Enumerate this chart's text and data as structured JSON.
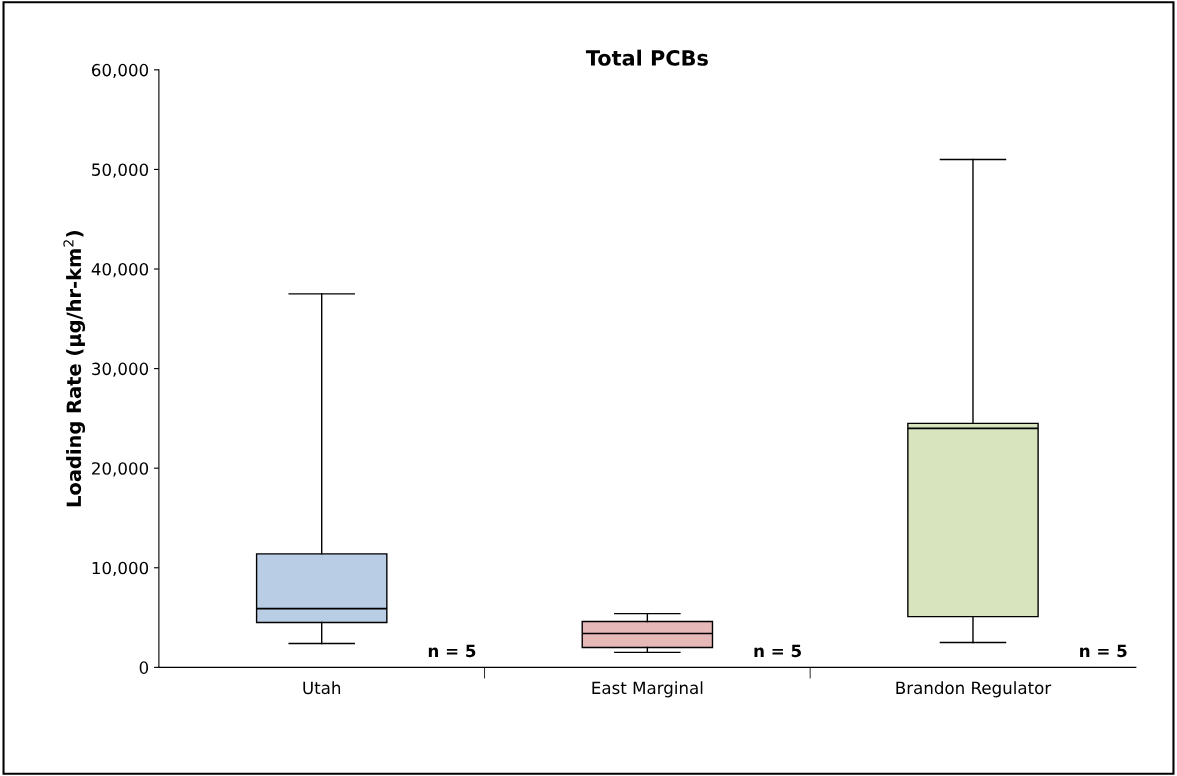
{
  "chart_data": {
    "type": "box",
    "title": "Total PCBs",
    "ylabel": "Loading Rate (µg/hr-km$^{2}$)",
    "categories": [
      "Utah",
      "East Marginal",
      "Brandon Regulator"
    ],
    "boxes": [
      {
        "low": 2400,
        "q1": 4500,
        "median": 5900,
        "q3": 11400,
        "high": 37500
      },
      {
        "low": 1500,
        "q1": 2000,
        "median": 3400,
        "q3": 4600,
        "high": 5400
      },
      {
        "low": 2500,
        "q1": 5100,
        "median": 24000,
        "q3": 24500,
        "high": 51000
      }
    ],
    "colors": [
      "#b9cde5",
      "#e6b9b8",
      "#d7e4bd"
    ],
    "ylim": [
      0,
      60000
    ],
    "yticks": [
      {
        "value": 0,
        "label": "0"
      },
      {
        "value": 10000,
        "label": "10,000"
      },
      {
        "value": 20000,
        "label": "20,000"
      },
      {
        "value": 30000,
        "label": "30,000"
      },
      {
        "value": 40000,
        "label": "40,000"
      },
      {
        "value": 50000,
        "label": "50,000"
      },
      {
        "value": 60000,
        "label": "60,000"
      }
    ],
    "annotations": [
      "n = 5",
      "n = 5",
      "n = 5"
    ],
    "grid": false,
    "legend": false
  }
}
